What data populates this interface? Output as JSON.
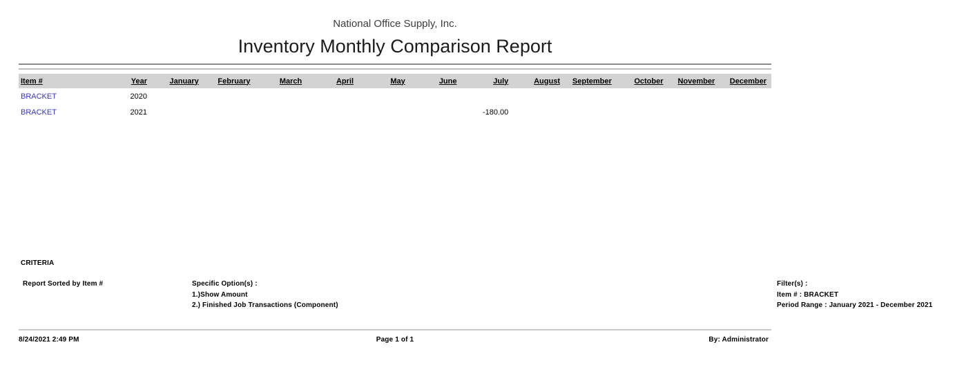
{
  "report": {
    "company_name": "National Office Supply, Inc.",
    "title": "Inventory Monthly Comparison Report"
  },
  "table": {
    "columns": [
      "Item #",
      "Year",
      "January",
      "February",
      "March",
      "April",
      "May",
      "June",
      "July",
      "August",
      "September",
      "October",
      "November",
      "December"
    ],
    "rows": [
      {
        "item": "BRACKET",
        "year": "2020",
        "values": [
          "",
          "",
          "",
          "",
          "",
          "",
          "",
          "",
          "",
          "",
          "",
          ""
        ]
      },
      {
        "item": "BRACKET",
        "year": "2021",
        "values": [
          "",
          "",
          "",
          "",
          "",
          "",
          "-180.00",
          "",
          "",
          "",
          "",
          ""
        ]
      }
    ]
  },
  "criteria": {
    "heading": "CRITERIA",
    "sorted_by": "Report Sorted by Item #",
    "specific_options_label": "Specific Option(s) :",
    "specific_options": [
      "1.)Show Amount",
      "2.) Finished Job Transactions (Component)"
    ],
    "filters_label": "Filter(s) :",
    "filters": [
      "Item # : BRACKET",
      "Period Range : January 2021 - December 2021"
    ]
  },
  "footer": {
    "datetime": "8/24/2021 2:49 PM",
    "page": "Page 1 of 1",
    "by": "By: Administrator"
  },
  "colors": {
    "item_link": "#3333cc",
    "header_band": "#d3d3d3",
    "rule_dark": "#8c8c8c",
    "rule_light": "#bdbdbd",
    "footer_rule": "#c9c9c9"
  }
}
